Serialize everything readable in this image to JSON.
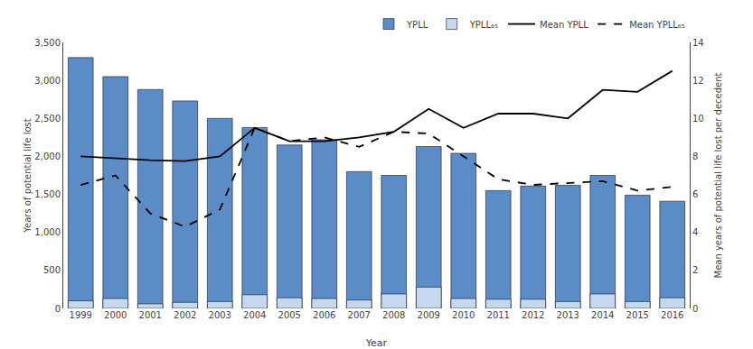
{
  "chart_data": {
    "type": "bar",
    "xlabel": "Year",
    "ylabel": "Years of potential life lost",
    "y2label": "Mean years of potential life lost per decedent",
    "categories": [
      "1999",
      "2000",
      "2001",
      "2002",
      "2003",
      "2004",
      "2005",
      "2006",
      "2007",
      "2008",
      "2009",
      "2010",
      "2011",
      "2012",
      "2013",
      "2014",
      "2015",
      "2016"
    ],
    "series": [
      {
        "name": "YPLL",
        "type": "bar",
        "color": "#5B8CC8",
        "values": [
          3300,
          3050,
          2880,
          2730,
          2500,
          2380,
          2150,
          2220,
          1800,
          1750,
          2130,
          2040,
          1550,
          1610,
          1620,
          1750,
          1490,
          1410
        ]
      },
      {
        "name": "YPLL₆₅",
        "type": "bar",
        "color": "#C5D8ED",
        "values": [
          100,
          130,
          60,
          80,
          90,
          180,
          140,
          130,
          110,
          190,
          280,
          130,
          120,
          120,
          90,
          190,
          90,
          140
        ]
      },
      {
        "name": "Mean YPLL",
        "type": "line",
        "axis": "y2",
        "color": "#000000",
        "line_style": "solid",
        "values": [
          8.0,
          7.9,
          7.8,
          7.75,
          8.0,
          9.5,
          8.8,
          8.8,
          9.0,
          9.3,
          10.5,
          9.5,
          10.25,
          10.25,
          10.0,
          11.5,
          11.4,
          12.5
        ]
      },
      {
        "name": "Mean YPLL₆₅",
        "type": "line",
        "axis": "y2",
        "color": "#000000",
        "line_style": "dashed",
        "values": [
          6.5,
          7.0,
          5.0,
          4.3,
          5.2,
          9.5,
          8.8,
          9.0,
          8.5,
          9.3,
          9.2,
          8.0,
          6.8,
          6.5,
          6.6,
          6.7,
          6.2,
          6.4
        ]
      }
    ],
    "ylim": [
      0,
      3500
    ],
    "yticks": [
      0,
      500,
      {
        "value": 1000,
        "label": "1,000"
      },
      {
        "value": 1500,
        "label": "1,500"
      },
      {
        "value": 2000,
        "label": "2,000"
      },
      {
        "value": 2500,
        "label": "2,500"
      },
      {
        "value": 3000,
        "label": "3,000"
      },
      {
        "value": 3500,
        "label": "3,500"
      }
    ],
    "y2lim": [
      0,
      14
    ],
    "y2ticks": [
      0,
      2,
      4,
      6,
      8,
      10,
      12,
      14
    ],
    "grid": false,
    "legend": "upper right"
  }
}
